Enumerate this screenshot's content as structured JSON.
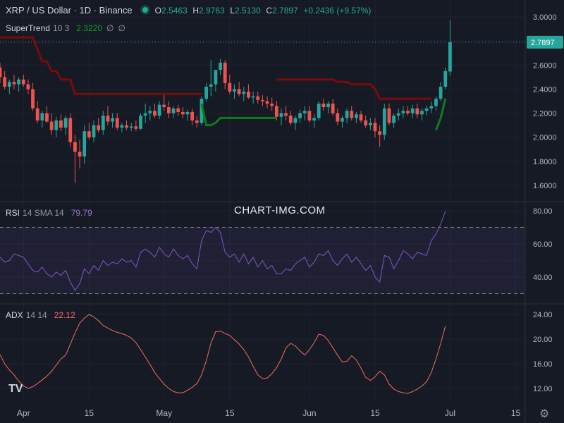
{
  "header": {
    "symbol_title": "XRP / US Dollar · 1D · Binance",
    "o_label": "O",
    "o": "2.5463",
    "h_label": "H",
    "h": "2.9763",
    "l_label": "L",
    "l": "2.5130",
    "c_label": "C",
    "c": "2.7897",
    "change": "+0.2436 (+9.57%)"
  },
  "supertrend": {
    "name": "SuperTrend",
    "params": "10 3",
    "value": "2.3220",
    "sym1": "∅",
    "sym2": "∅"
  },
  "rsi": {
    "name": "RSI",
    "params": "14 SMA 14",
    "value": "79.79"
  },
  "adx": {
    "name": "ADX",
    "params": "14 14",
    "value": "22.12"
  },
  "watermark": "CHART-IMG.COM",
  "logo": "TV",
  "last_price_label": "2.7897",
  "colors": {
    "up": "#26a69a",
    "down": "#ef5350",
    "st_up": "#0d7d1c",
    "st_down": "#7a0b0b",
    "rsi": "#7e57c2",
    "adx": "#f06b60"
  },
  "chart_data": {
    "type": "candlestick",
    "price_axis": {
      "ylim": [
        1.5,
        3.05
      ],
      "ticks": [
        "1.6000",
        "1.8000",
        "2.0000",
        "2.2000",
        "2.4000",
        "2.6000",
        "2.8000",
        "3.0000"
      ]
    },
    "x_axis": {
      "labels": [
        "Apr",
        "15",
        "May",
        "15",
        "Jun",
        "15",
        "Jul",
        "15"
      ],
      "label_day_index": [
        5,
        19,
        35,
        49,
        66,
        80,
        96,
        110
      ]
    },
    "candles": [
      [
        2.58,
        2.62,
        2.45,
        2.5
      ],
      [
        2.5,
        2.55,
        2.4,
        2.42
      ],
      [
        2.42,
        2.48,
        2.36,
        2.46
      ],
      [
        2.46,
        2.52,
        2.4,
        2.44
      ],
      [
        2.44,
        2.5,
        2.38,
        2.48
      ],
      [
        2.48,
        2.52,
        2.42,
        2.44
      ],
      [
        2.44,
        2.48,
        2.36,
        2.4
      ],
      [
        2.4,
        2.45,
        2.22,
        2.24
      ],
      [
        2.24,
        2.3,
        2.12,
        2.14
      ],
      [
        2.14,
        2.22,
        2.08,
        2.2
      ],
      [
        2.2,
        2.26,
        2.12,
        2.13
      ],
      [
        2.13,
        2.2,
        2.02,
        2.06
      ],
      [
        2.06,
        2.17,
        2.0,
        2.14
      ],
      [
        2.14,
        2.19,
        2.05,
        2.08
      ],
      [
        2.08,
        2.18,
        2.02,
        2.16
      ],
      [
        2.16,
        2.2,
        1.92,
        1.96
      ],
      [
        1.96,
        2.02,
        1.62,
        1.88
      ],
      [
        1.88,
        1.98,
        1.74,
        1.84
      ],
      [
        1.84,
        2.1,
        1.78,
        2.05
      ],
      [
        2.05,
        2.12,
        1.98,
        2.0
      ],
      [
        2.0,
        2.14,
        1.96,
        2.1
      ],
      [
        2.1,
        2.16,
        2.04,
        2.06
      ],
      [
        2.06,
        2.22,
        2.02,
        2.18
      ],
      [
        2.18,
        2.26,
        2.1,
        2.13
      ],
      [
        2.13,
        2.2,
        2.08,
        2.16
      ],
      [
        2.16,
        2.2,
        2.06,
        2.08
      ],
      [
        2.08,
        2.12,
        2.04,
        2.1
      ],
      [
        2.1,
        2.14,
        2.06,
        2.08
      ],
      [
        2.08,
        2.12,
        2.05,
        2.09
      ],
      [
        2.09,
        2.14,
        2.05,
        2.07
      ],
      [
        2.07,
        2.2,
        2.06,
        2.18
      ],
      [
        2.18,
        2.28,
        2.12,
        2.2
      ],
      [
        2.2,
        2.26,
        2.14,
        2.22
      ],
      [
        2.22,
        2.28,
        2.16,
        2.18
      ],
      [
        2.18,
        2.3,
        2.15,
        2.27
      ],
      [
        2.27,
        2.36,
        2.22,
        2.25
      ],
      [
        2.25,
        2.3,
        2.16,
        2.2
      ],
      [
        2.2,
        2.26,
        2.16,
        2.24
      ],
      [
        2.24,
        2.27,
        2.18,
        2.21
      ],
      [
        2.21,
        2.25,
        2.16,
        2.19
      ],
      [
        2.19,
        2.23,
        2.14,
        2.21
      ],
      [
        2.21,
        2.24,
        2.1,
        2.14
      ],
      [
        2.14,
        2.18,
        2.08,
        2.12
      ],
      [
        2.12,
        2.34,
        2.1,
        2.32
      ],
      [
        2.32,
        2.45,
        2.3,
        2.42
      ],
      [
        2.42,
        2.64,
        2.34,
        2.44
      ],
      [
        2.44,
        2.55,
        2.38,
        2.56
      ],
      [
        2.56,
        2.65,
        2.52,
        2.62
      ],
      [
        2.62,
        2.64,
        2.4,
        2.45
      ],
      [
        2.45,
        2.52,
        2.36,
        2.38
      ],
      [
        2.38,
        2.44,
        2.32,
        2.4
      ],
      [
        2.4,
        2.46,
        2.34,
        2.36
      ],
      [
        2.36,
        2.42,
        2.3,
        2.38
      ],
      [
        2.38,
        2.44,
        2.32,
        2.33
      ],
      [
        2.33,
        2.38,
        2.28,
        2.34
      ],
      [
        2.34,
        2.38,
        2.28,
        2.31
      ],
      [
        2.31,
        2.35,
        2.26,
        2.3
      ],
      [
        2.3,
        2.34,
        2.24,
        2.28
      ],
      [
        2.28,
        2.33,
        2.22,
        2.26
      ],
      [
        2.26,
        2.3,
        2.14,
        2.17
      ],
      [
        2.17,
        2.24,
        2.1,
        2.2
      ],
      [
        2.2,
        2.26,
        2.14,
        2.18
      ],
      [
        2.18,
        2.22,
        2.1,
        2.12
      ],
      [
        2.12,
        2.18,
        2.06,
        2.16
      ],
      [
        2.16,
        2.23,
        2.12,
        2.2
      ],
      [
        2.2,
        2.26,
        2.14,
        2.22
      ],
      [
        2.22,
        2.26,
        2.12,
        2.14
      ],
      [
        2.14,
        2.19,
        2.08,
        2.16
      ],
      [
        2.16,
        2.3,
        2.14,
        2.28
      ],
      [
        2.28,
        2.32,
        2.22,
        2.25
      ],
      [
        2.25,
        2.3,
        2.2,
        2.28
      ],
      [
        2.28,
        2.32,
        2.18,
        2.2
      ],
      [
        2.2,
        2.24,
        2.1,
        2.13
      ],
      [
        2.13,
        2.18,
        2.08,
        2.16
      ],
      [
        2.16,
        2.24,
        2.12,
        2.22
      ],
      [
        2.22,
        2.26,
        2.14,
        2.16
      ],
      [
        2.16,
        2.21,
        2.12,
        2.19
      ],
      [
        2.19,
        2.22,
        2.12,
        2.14
      ],
      [
        2.14,
        2.18,
        2.08,
        2.1
      ],
      [
        2.1,
        2.16,
        2.06,
        2.12
      ],
      [
        2.12,
        2.16,
        2.0,
        2.05
      ],
      [
        2.05,
        2.1,
        1.92,
        2.02
      ],
      [
        2.02,
        2.28,
        1.98,
        2.24
      ],
      [
        2.24,
        2.28,
        2.1,
        2.12
      ],
      [
        2.12,
        2.2,
        2.08,
        2.18
      ],
      [
        2.18,
        2.24,
        2.14,
        2.2
      ],
      [
        2.2,
        2.26,
        2.16,
        2.22
      ],
      [
        2.22,
        2.26,
        2.18,
        2.2
      ],
      [
        2.2,
        2.27,
        2.16,
        2.24
      ],
      [
        2.24,
        2.28,
        2.16,
        2.19
      ],
      [
        2.19,
        2.24,
        2.14,
        2.22
      ],
      [
        2.22,
        2.26,
        2.18,
        2.24
      ],
      [
        2.24,
        2.3,
        2.2,
        2.26
      ],
      [
        2.26,
        2.34,
        2.22,
        2.32
      ],
      [
        2.32,
        2.46,
        2.3,
        2.42
      ],
      [
        2.42,
        2.58,
        2.4,
        2.55
      ],
      [
        2.5463,
        2.9763,
        2.513,
        2.7897
      ]
    ],
    "supertrend": {
      "down_segments": [
        {
          "start": 0,
          "values": [
            2.83,
            2.83,
            2.83,
            2.83,
            2.83,
            2.83,
            2.83,
            2.83,
            2.73,
            2.63,
            2.63,
            2.55,
            2.55,
            2.48,
            2.48,
            2.48,
            2.36,
            2.36,
            2.36,
            2.36,
            2.36,
            2.36,
            2.36,
            2.36,
            2.36,
            2.36,
            2.36,
            2.36,
            2.36,
            2.36,
            2.36,
            2.36,
            2.36,
            2.36,
            2.36,
            2.36,
            2.36,
            2.36,
            2.36,
            2.36,
            2.36,
            2.36,
            2.36,
            2.36
          ]
        },
        {
          "start": 59,
          "values": [
            2.48,
            2.48,
            2.48,
            2.48,
            2.48,
            2.48,
            2.48,
            2.48,
            2.48,
            2.48,
            2.48,
            2.48,
            2.48,
            2.46,
            2.46,
            2.46,
            2.44,
            2.44,
            2.44,
            2.44,
            2.44,
            2.4,
            2.32,
            2.32,
            2.32,
            2.32,
            2.32,
            2.32,
            2.32,
            2.32,
            2.32,
            2.32,
            2.32,
            2.32
          ]
        }
      ],
      "up_segments": [
        {
          "start": 43,
          "values": [
            2.28,
            2.1,
            2.1,
            2.12,
            2.16,
            2.16,
            2.16,
            2.16,
            2.16,
            2.16,
            2.16,
            2.16,
            2.16,
            2.16,
            2.16,
            2.16,
            2.16
          ]
        },
        {
          "start": 93,
          "values": [
            2.06,
            2.16,
            2.322
          ]
        }
      ]
    },
    "rsi": {
      "ylim": [
        28,
        84
      ],
      "ticks": [
        "40.00",
        "60.00",
        "80.00"
      ],
      "band": [
        30,
        70
      ],
      "values": [
        52,
        49,
        50,
        54,
        53,
        52,
        48,
        44,
        43,
        46,
        42,
        40,
        43,
        41,
        44,
        37,
        32,
        36,
        45,
        42,
        47,
        44,
        50,
        47,
        49,
        48,
        51,
        49,
        50,
        46,
        55,
        57,
        55,
        52,
        58,
        54,
        52,
        57,
        53,
        51,
        53,
        48,
        45,
        62,
        68,
        67,
        70,
        67,
        55,
        52,
        54,
        49,
        54,
        48,
        52,
        46,
        50,
        45,
        47,
        42,
        42,
        45,
        44,
        48,
        50,
        52,
        46,
        49,
        54,
        53,
        56,
        50,
        47,
        51,
        54,
        49,
        52,
        48,
        44,
        47,
        40,
        37,
        53,
        52,
        45,
        50,
        56,
        54,
        51,
        55,
        54,
        53,
        62,
        66,
        72,
        79.79
      ]
    },
    "adx": {
      "ylim": [
        10,
        25
      ],
      "ticks": [
        "12.00",
        "16.00",
        "20.00",
        "24.00"
      ],
      "values": [
        17.5,
        16,
        15,
        14.2,
        13.2,
        12.4,
        12,
        12.3,
        12.8,
        13.4,
        14,
        14.8,
        15.8,
        16.8,
        17.4,
        19.2,
        21,
        22.6,
        23.4,
        24,
        23.6,
        23,
        22.2,
        21.8,
        21.4,
        21.1,
        20.9,
        20.6,
        20.2,
        19.4,
        18.3,
        17.1,
        15.9,
        14.6,
        13.6,
        12.7,
        12,
        11.5,
        11.3,
        11.3,
        11.7,
        12.2,
        12.8,
        14.2,
        16.5,
        19.4,
        21.2,
        21.3,
        20.9,
        20.6,
        19.9,
        19.2,
        18.3,
        17.1,
        15.6,
        14.2,
        13.6,
        13.7,
        14.4,
        15.4,
        16.8,
        18.6,
        19.3,
        18.9,
        18.1,
        17.4,
        18.3,
        19.4,
        20.8,
        20.6,
        19.8,
        18.6,
        17.4,
        16.3,
        16.4,
        17.3,
        16.6,
        15.3,
        13.8,
        13.3,
        13.9,
        14.8,
        14.2,
        12.7,
        11.9,
        11.5,
        11.3,
        11.2,
        11.5,
        11.9,
        12.4,
        13.1,
        14.6,
        16.8,
        19.3,
        22.12
      ]
    }
  }
}
